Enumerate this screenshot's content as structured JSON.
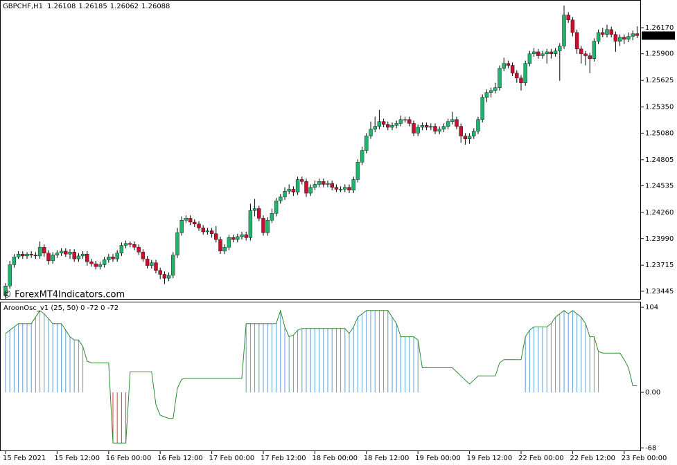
{
  "chart_data": [
    {
      "type": "candlestick",
      "title": "GBPCHF,H1",
      "watermark": "© ForexMT4Indicators.com",
      "up_color": "#21b26e",
      "down_color": "#c8102e",
      "ylim": [
        1.23366,
        1.26456
      ],
      "yticks": [
        {
          "value": 1.2617,
          "label": "1.26170"
        },
        {
          "value": 1.259,
          "label": "1.25900"
        },
        {
          "value": 1.25625,
          "label": "1.25625"
        },
        {
          "value": 1.2535,
          "label": "1.25350"
        },
        {
          "value": 1.2508,
          "label": "1.25080"
        },
        {
          "value": 1.24805,
          "label": "1.24805"
        },
        {
          "value": 1.24535,
          "label": "1.24535"
        },
        {
          "value": 1.2426,
          "label": "1.24260"
        },
        {
          "value": 1.2399,
          "label": "1.23990"
        },
        {
          "value": 1.23715,
          "label": "1.23715"
        },
        {
          "value": 1.23445,
          "label": "1.23445"
        }
      ],
      "open": [
        1.234,
        1.235,
        1.2372,
        1.238,
        1.2383,
        1.2381,
        1.2383,
        1.2382,
        1.2381,
        1.239,
        1.2384,
        1.2376,
        1.2382,
        1.2384,
        1.2386,
        1.2383,
        1.2385,
        1.2378,
        1.2381,
        1.2383,
        1.2375,
        1.2373,
        1.237,
        1.2372,
        1.2377,
        1.238,
        1.2378,
        1.2384,
        1.2392,
        1.2394,
        1.2393,
        1.239,
        1.2385,
        1.2378,
        1.2371,
        1.2374,
        1.2366,
        1.2362,
        1.2358,
        1.2361,
        1.2382,
        1.2405,
        1.2418,
        1.242,
        1.2416,
        1.2414,
        1.241,
        1.2406,
        1.2407,
        1.2404,
        1.2398,
        1.2386,
        1.239,
        1.24,
        1.2398,
        1.2401,
        1.2403,
        1.24,
        1.2428,
        1.243,
        1.242,
        1.2405,
        1.2418,
        1.2425,
        1.2438,
        1.2442,
        1.2448,
        1.245,
        1.2447,
        1.246,
        1.2458,
        1.2446,
        1.2452,
        1.2455,
        1.2458,
        1.2455,
        1.2456,
        1.2452,
        1.245,
        1.245,
        1.2452,
        1.2449,
        1.246,
        1.2478,
        1.249,
        1.2505,
        1.2512,
        1.2515,
        1.252,
        1.2517,
        1.2514,
        1.2516,
        1.2518,
        1.2522,
        1.2522,
        1.2518,
        1.2508,
        1.2514,
        1.2516,
        1.2514,
        1.2515,
        1.251,
        1.2512,
        1.2515,
        1.252,
        1.2522,
        1.2515,
        1.2505,
        1.2502,
        1.2505,
        1.251,
        1.2522,
        1.2545,
        1.255,
        1.2552,
        1.2555,
        1.2575,
        1.258,
        1.2578,
        1.257,
        1.2565,
        1.256,
        1.258,
        1.259,
        1.2592,
        1.2588,
        1.259,
        1.2592,
        1.259,
        1.2593,
        1.2598,
        1.263,
        1.2625,
        1.2612,
        1.2595,
        1.259,
        1.2588,
        1.2585,
        1.2603,
        1.2612,
        1.261,
        1.2615,
        1.261,
        1.2603,
        1.2607,
        1.2605,
        1.2608,
        1.26108
      ],
      "high": [
        1.2353,
        1.2376,
        1.2383,
        1.2386,
        1.2386,
        1.2385,
        1.2386,
        1.2385,
        1.2396,
        1.2393,
        1.2387,
        1.2385,
        1.2387,
        1.2389,
        1.2389,
        1.2388,
        1.2388,
        1.2384,
        1.2386,
        1.2386,
        1.2378,
        1.2376,
        1.2375,
        1.238,
        1.2383,
        1.2383,
        1.2387,
        1.2395,
        1.2397,
        1.2396,
        1.2396,
        1.2393,
        1.2388,
        1.2381,
        1.2377,
        1.2377,
        1.2369,
        1.2365,
        1.2364,
        1.2385,
        1.241,
        1.2422,
        1.2423,
        1.2423,
        1.2419,
        1.2417,
        1.2413,
        1.241,
        1.241,
        1.2412,
        1.2401,
        1.2393,
        1.2403,
        1.2403,
        1.2404,
        1.2406,
        1.2406,
        1.2435,
        1.244,
        1.2433,
        1.2423,
        1.2421,
        1.243,
        1.2441,
        1.2445,
        1.2452,
        1.2455,
        1.2453,
        1.2463,
        1.2463,
        1.2461,
        1.2455,
        1.2459,
        1.2461,
        1.2461,
        1.2459,
        1.2459,
        1.2455,
        1.2453,
        1.2455,
        1.2455,
        1.2463,
        1.2481,
        1.2494,
        1.2508,
        1.252,
        1.2525,
        1.2532,
        1.2523,
        1.252,
        1.2519,
        1.2521,
        1.2526,
        1.2525,
        1.2525,
        1.2521,
        1.2517,
        1.2519,
        1.2519,
        1.2518,
        1.2518,
        1.2515,
        1.2518,
        1.2523,
        1.253,
        1.2525,
        1.2518,
        1.2508,
        1.2508,
        1.2513,
        1.2525,
        1.2548,
        1.2553,
        1.2555,
        1.256,
        1.2578,
        1.2586,
        1.2583,
        1.2581,
        1.2573,
        1.2568,
        1.2583,
        1.2593,
        1.2596,
        1.2595,
        1.2593,
        1.2595,
        1.2595,
        1.2596,
        1.2601,
        1.264,
        1.2633,
        1.2628,
        1.2615,
        1.2598,
        1.2593,
        1.2591,
        1.2606,
        1.2615,
        1.2617,
        1.262,
        1.2618,
        1.2613,
        1.261,
        1.261,
        1.2612,
        1.2614,
        1.26185
      ],
      "low": [
        1.2336,
        1.2347,
        1.2369,
        1.2378,
        1.2378,
        1.2378,
        1.2379,
        1.2378,
        1.2378,
        1.238,
        1.2372,
        1.2373,
        1.2379,
        1.2381,
        1.238,
        1.2378,
        1.2375,
        1.2375,
        1.2378,
        1.2371,
        1.237,
        1.2367,
        1.2367,
        1.2369,
        1.2374,
        1.2375,
        1.2375,
        1.2381,
        1.2389,
        1.239,
        1.2387,
        1.2382,
        1.2375,
        1.2368,
        1.2368,
        1.2363,
        1.2357,
        1.2352,
        1.2355,
        1.2358,
        1.2379,
        1.2402,
        1.2415,
        1.2413,
        1.2411,
        1.2407,
        1.2403,
        1.2403,
        1.24,
        1.2395,
        1.2383,
        1.2383,
        1.2387,
        1.2395,
        1.2395,
        1.2398,
        1.2397,
        1.2397,
        1.2422,
        1.2417,
        1.2402,
        1.2402,
        1.2415,
        1.2422,
        1.2435,
        1.2439,
        1.2445,
        1.2443,
        1.2444,
        1.2455,
        1.2442,
        1.2443,
        1.2449,
        1.2452,
        1.2452,
        1.2452,
        1.2449,
        1.2447,
        1.2447,
        1.2447,
        1.2446,
        1.2446,
        1.2457,
        1.2475,
        1.2487,
        1.2502,
        1.2509,
        1.2512,
        1.2514,
        1.2511,
        1.2511,
        1.2513,
        1.2515,
        1.2519,
        1.2515,
        1.2505,
        1.2505,
        1.2511,
        1.2511,
        1.2511,
        1.2507,
        1.2507,
        1.2509,
        1.2512,
        1.2517,
        1.2512,
        1.2498,
        1.2496,
        1.2497,
        1.2502,
        1.2507,
        1.2519,
        1.254,
        1.2545,
        1.2549,
        1.2552,
        1.2572,
        1.2575,
        1.2567,
        1.256,
        1.2552,
        1.2557,
        1.2577,
        1.2587,
        1.2585,
        1.2585,
        1.258,
        1.2585,
        1.2587,
        1.2562,
        1.2595,
        1.2622,
        1.2608,
        1.259,
        1.258,
        1.2578,
        1.257,
        1.2582,
        1.26,
        1.2607,
        1.2607,
        1.2607,
        1.2592,
        1.2598,
        1.26,
        1.2602,
        1.2604,
        1.26062
      ],
      "close": [
        1.235,
        1.2372,
        1.238,
        1.2383,
        1.2381,
        1.2383,
        1.2382,
        1.2381,
        1.239,
        1.2384,
        1.2376,
        1.2382,
        1.2384,
        1.2386,
        1.2383,
        1.2385,
        1.2378,
        1.2381,
        1.2383,
        1.2375,
        1.2373,
        1.237,
        1.2372,
        1.2377,
        1.238,
        1.2378,
        1.2384,
        1.2392,
        1.2394,
        1.2393,
        1.239,
        1.2385,
        1.2378,
        1.2371,
        1.2374,
        1.2366,
        1.2362,
        1.2358,
        1.2361,
        1.2382,
        1.2405,
        1.2418,
        1.242,
        1.2416,
        1.2414,
        1.241,
        1.2406,
        1.2407,
        1.2404,
        1.2398,
        1.2386,
        1.239,
        1.24,
        1.2398,
        1.2401,
        1.2403,
        1.24,
        1.2428,
        1.243,
        1.242,
        1.2405,
        1.2418,
        1.2425,
        1.2438,
        1.2442,
        1.2448,
        1.245,
        1.2447,
        1.246,
        1.2458,
        1.2446,
        1.2452,
        1.2455,
        1.2458,
        1.2455,
        1.2456,
        1.2452,
        1.245,
        1.245,
        1.2452,
        1.2449,
        1.246,
        1.2478,
        1.249,
        1.2505,
        1.2512,
        1.2515,
        1.252,
        1.2517,
        1.2514,
        1.2516,
        1.2518,
        1.2522,
        1.2522,
        1.2518,
        1.2508,
        1.2514,
        1.2516,
        1.2514,
        1.2515,
        1.251,
        1.2512,
        1.2515,
        1.252,
        1.2522,
        1.2515,
        1.2505,
        1.2502,
        1.2505,
        1.251,
        1.2522,
        1.2545,
        1.255,
        1.2552,
        1.2555,
        1.2575,
        1.258,
        1.2578,
        1.257,
        1.2565,
        1.256,
        1.258,
        1.259,
        1.2592,
        1.2588,
        1.259,
        1.2592,
        1.259,
        1.2593,
        1.2598,
        1.263,
        1.2625,
        1.2612,
        1.2595,
        1.259,
        1.2588,
        1.2585,
        1.2603,
        1.2612,
        1.261,
        1.2615,
        1.261,
        1.2603,
        1.2607,
        1.2605,
        1.2608,
        1.26108,
        1.26088
      ]
    },
    {
      "type": "line",
      "title": "AroonOsc_v1 (25, 50) 0 -72 0 -72",
      "color": "#2e8b2e",
      "up_color": "#5b9bd5",
      "down_color": "#e53935",
      "ylim": [
        -72,
        110
      ],
      "yticks": [
        104,
        {
          "value": 0,
          "label": "0.00"
        },
        -68
      ],
      "xticks": [
        {
          "value": 0,
          "label": "15 Feb 2021"
        },
        {
          "value": 12,
          "label": "15 Feb 12:00"
        },
        {
          "value": 24,
          "label": "16 Feb 00:00"
        },
        {
          "value": 36,
          "label": "16 Feb 12:00"
        },
        {
          "value": 48,
          "label": "17 Feb 00:00"
        },
        {
          "value": 60,
          "label": "17 Feb 12:00"
        },
        {
          "value": 72,
          "label": "18 Feb 00:00"
        },
        {
          "value": 84,
          "label": "18 Feb 12:00"
        },
        {
          "value": 96,
          "label": "19 Feb 00:00"
        },
        {
          "value": 108,
          "label": "19 Feb 12:00"
        },
        {
          "value": 120,
          "label": "22 Feb 00:00"
        },
        {
          "value": 132,
          "label": "22 Feb 12:00"
        },
        {
          "value": 144,
          "label": "23 Feb 00:00"
        }
      ],
      "values": [
        72,
        76,
        80,
        84,
        84,
        84,
        84,
        92,
        100,
        96,
        90,
        84,
        84,
        84,
        76,
        68,
        64,
        64,
        56,
        38,
        36,
        36,
        36,
        36,
        36,
        -62,
        -62,
        -62,
        -62,
        25,
        25,
        25,
        25,
        25,
        25,
        -15,
        -28,
        -30,
        -32,
        -32,
        5,
        16,
        17,
        17,
        17,
        17,
        17,
        17,
        17,
        17,
        17,
        17,
        17,
        17,
        17,
        17,
        84,
        84,
        84,
        84,
        84,
        84,
        84,
        84,
        100,
        80,
        68,
        70,
        76,
        78,
        78,
        78,
        78,
        78,
        78,
        78,
        78,
        78,
        78,
        78,
        72,
        80,
        92,
        96,
        100,
        100,
        100,
        100,
        100,
        100,
        92,
        84,
        68,
        68,
        68,
        68,
        64,
        30,
        30,
        30,
        30,
        30,
        30,
        30,
        30,
        25,
        20,
        15,
        10,
        15,
        20,
        20,
        20,
        20,
        20,
        36,
        40,
        40,
        40,
        40,
        40,
        68,
        76,
        80,
        80,
        80,
        80,
        84,
        92,
        96,
        100,
        96,
        100,
        96,
        92,
        84,
        68,
        68,
        50,
        48,
        48,
        48,
        48,
        48,
        40,
        30,
        8,
        8
      ]
    }
  ]
}
